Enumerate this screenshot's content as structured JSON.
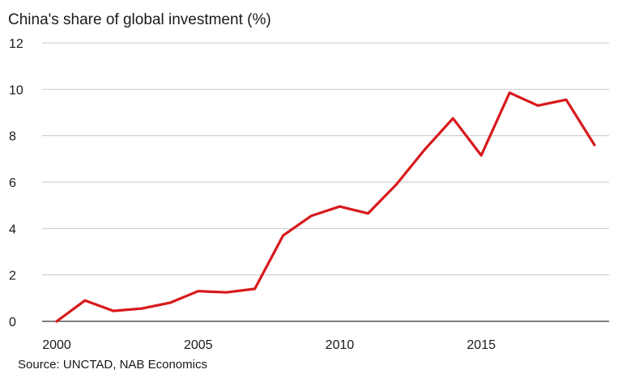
{
  "chart_data": {
    "type": "line",
    "title": "China's share of global investment (%)",
    "source": "Source: UNCTAD, NAB Economics",
    "xlabel": "",
    "ylabel": "",
    "xlim": [
      2000,
      2019
    ],
    "ylim": [
      0,
      12
    ],
    "x_ticks": [
      2000,
      2005,
      2010,
      2015
    ],
    "y_ticks": [
      0,
      2,
      4,
      6,
      8,
      10,
      12
    ],
    "grid": "horizontal",
    "legend": "none",
    "series": [
      {
        "color": "#d7191c",
        "x": [
          2000,
          2001,
          2002,
          2003,
          2004,
          2005,
          2006,
          2007,
          2008,
          2009,
          2010,
          2011,
          2012,
          2013,
          2014,
          2015,
          2016,
          2017,
          2018,
          2019
        ],
        "y": [
          0.0,
          0.9,
          0.45,
          0.55,
          0.8,
          1.3,
          1.25,
          1.4,
          3.7,
          4.55,
          4.95,
          4.65,
          5.9,
          7.4,
          8.75,
          7.15,
          9.85,
          9.3,
          9.55,
          7.6
        ]
      }
    ]
  }
}
